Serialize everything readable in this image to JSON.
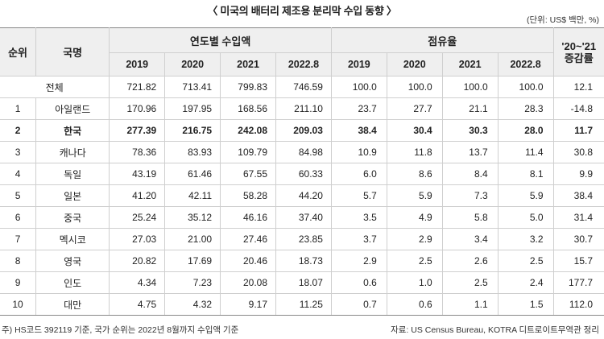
{
  "title": "〈 미국의 배터리 제조용 분리막 수입 동향 〉",
  "unit": "(단위: US$ 백만, %)",
  "headers": {
    "rank": "순위",
    "country": "국명",
    "import_group": "연도별 수입액",
    "share_group": "점유율",
    "change_line1": "'20~'21",
    "change_line2": "증감률",
    "years": [
      "2019",
      "2020",
      "2021",
      "2022.8"
    ]
  },
  "total_row": {
    "label": "전체",
    "imports": [
      "721.82",
      "713.41",
      "799.83",
      "746.59"
    ],
    "shares": [
      "100.0",
      "100.0",
      "100.0",
      "100.0"
    ],
    "change": "12.1"
  },
  "rows": [
    {
      "rank": "1",
      "country": "아일랜드",
      "imports": [
        "170.96",
        "197.95",
        "168.56",
        "211.10"
      ],
      "shares": [
        "23.7",
        "27.7",
        "21.1",
        "28.3"
      ],
      "change": "-14.8"
    },
    {
      "rank": "2",
      "country": "한국",
      "imports": [
        "277.39",
        "216.75",
        "242.08",
        "209.03"
      ],
      "shares": [
        "38.4",
        "30.4",
        "30.3",
        "28.0"
      ],
      "change": "11.7"
    },
    {
      "rank": "3",
      "country": "캐나다",
      "imports": [
        "78.36",
        "83.93",
        "109.79",
        "84.98"
      ],
      "shares": [
        "10.9",
        "11.8",
        "13.7",
        "11.4"
      ],
      "change": "30.8"
    },
    {
      "rank": "4",
      "country": "독일",
      "imports": [
        "43.19",
        "61.46",
        "67.55",
        "60.33"
      ],
      "shares": [
        "6.0",
        "8.6",
        "8.4",
        "8.1"
      ],
      "change": "9.9"
    },
    {
      "rank": "5",
      "country": "일본",
      "imports": [
        "41.20",
        "42.11",
        "58.28",
        "44.20"
      ],
      "shares": [
        "5.7",
        "5.9",
        "7.3",
        "5.9"
      ],
      "change": "38.4"
    },
    {
      "rank": "6",
      "country": "중국",
      "imports": [
        "25.24",
        "35.12",
        "46.16",
        "37.40"
      ],
      "shares": [
        "3.5",
        "4.9",
        "5.8",
        "5.0"
      ],
      "change": "31.4"
    },
    {
      "rank": "7",
      "country": "멕시코",
      "imports": [
        "27.03",
        "21.00",
        "27.46",
        "23.85"
      ],
      "shares": [
        "3.7",
        "2.9",
        "3.4",
        "3.2"
      ],
      "change": "30.7"
    },
    {
      "rank": "8",
      "country": "영국",
      "imports": [
        "20.82",
        "17.69",
        "20.46",
        "18.73"
      ],
      "shares": [
        "2.9",
        "2.5",
        "2.6",
        "2.5"
      ],
      "change": "15.7"
    },
    {
      "rank": "9",
      "country": "인도",
      "imports": [
        "4.34",
        "7.23",
        "20.08",
        "18.07"
      ],
      "shares": [
        "0.6",
        "1.0",
        "2.5",
        "2.4"
      ],
      "change": "177.7"
    },
    {
      "rank": "10",
      "country": "대만",
      "imports": [
        "4.75",
        "4.32",
        "9.17",
        "11.25"
      ],
      "shares": [
        "0.7",
        "0.6",
        "1.1",
        "1.5"
      ],
      "change": "112.0"
    }
  ],
  "footnote_left": "주) HS코드 392119 기준, 국가 순위는 2022년 8월까지 수입액 기준",
  "footnote_right": "자료: US Census Bureau, KOTRA 디트로이트무역관 정리"
}
